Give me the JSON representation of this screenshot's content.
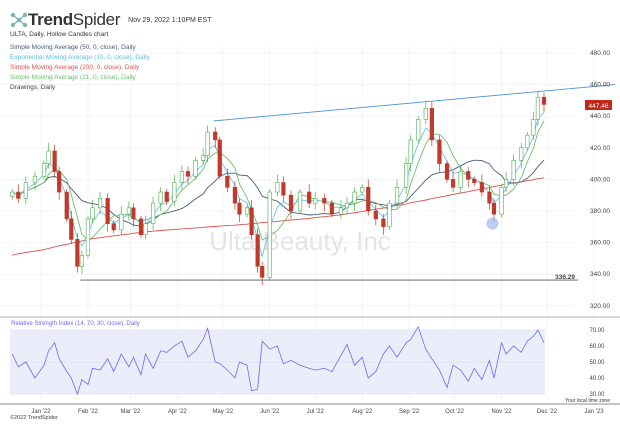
{
  "header": {
    "logo_bold": "Trend",
    "logo_light": "Spider",
    "timestamp": "Nov 29, 2022 1:10PM EST"
  },
  "legend": [
    {
      "label": "ULTA, Daily, Hollow Candles chart",
      "color": "#333333"
    },
    {
      "label": "Simple Moving Average (50, 0, close), Daily",
      "color": "#4a5a7a"
    },
    {
      "label": "Exponential Moving Average (10, 0, close), Daily",
      "color": "#5bc0de"
    },
    {
      "label": "Simple Moving Average (200, 0, close), Daily",
      "color": "#d9534f"
    },
    {
      "label": "Simple Moving Average (21, 0, close), Daily",
      "color": "#6cbf6c"
    },
    {
      "label": "Drawings, Daily",
      "color": "#444444"
    }
  ],
  "watermark": "Ulta Beauty, Inc",
  "last_price_label": "447.46",
  "support_label": "336.29",
  "rsi_title": "Relative Strength Index (14, 70, 30, close), Daily",
  "timezone_note": "Your local time zone",
  "copyright": "©2022 TrendSpider",
  "colors": {
    "up": "#4caf50",
    "down": "#c0392b",
    "trendline": "#4a90d9",
    "rsi": "#6a6af0",
    "price_tag": "#c0281c"
  },
  "chart_data": [
    {
      "type": "candlestick",
      "title": "ULTA, Daily, Hollow Candles chart",
      "ylim": [
        320,
        490
      ],
      "y_ticks": [
        "480.00",
        "460.00",
        "440.00",
        "420.00",
        "400.00",
        "380.00",
        "360.00",
        "340.00",
        "320.00"
      ],
      "x_ticks": [
        {
          "label": "Jan '22",
          "date": "2022-01-01"
        },
        {
          "label": "Feb '22",
          "date": "2022-02-01"
        },
        {
          "label": "Mar '22",
          "date": "2022-03-01"
        },
        {
          "label": "Apr '22",
          "date": "2022-04-01"
        },
        {
          "label": "May '22",
          "date": "2022-05-01"
        },
        {
          "label": "Jun '22",
          "date": "2022-06-01"
        },
        {
          "label": "Jul '22",
          "date": "2022-07-01"
        },
        {
          "label": "Aug '22",
          "date": "2022-08-01"
        },
        {
          "label": "Sep '22",
          "date": "2022-09-01"
        },
        {
          "label": "Oct '22",
          "date": "2022-10-01"
        },
        {
          "label": "Nov '22",
          "date": "2022-11-01"
        },
        {
          "label": "Dec '22",
          "date": "2022-12-01"
        },
        {
          "label": "Jan '23",
          "date": "2023-01-01"
        }
      ],
      "close": [
        [
          "2021-12-13",
          392
        ],
        [
          "2021-12-17",
          388
        ],
        [
          "2021-12-22",
          398
        ],
        [
          "2021-12-28",
          402
        ],
        [
          "2022-01-03",
          410
        ],
        [
          "2022-01-06",
          418
        ],
        [
          "2022-01-10",
          405
        ],
        [
          "2022-01-13",
          392
        ],
        [
          "2022-01-18",
          375
        ],
        [
          "2022-01-21",
          362
        ],
        [
          "2022-01-25",
          345
        ],
        [
          "2022-01-28",
          352
        ],
        [
          "2022-02-01",
          375
        ],
        [
          "2022-02-04",
          382
        ],
        [
          "2022-02-09",
          388
        ],
        [
          "2022-02-14",
          372
        ],
        [
          "2022-02-18",
          368
        ],
        [
          "2022-02-23",
          378
        ],
        [
          "2022-02-28",
          382
        ],
        [
          "2022-03-03",
          375
        ],
        [
          "2022-03-08",
          365
        ],
        [
          "2022-03-11",
          372
        ],
        [
          "2022-03-16",
          385
        ],
        [
          "2022-03-21",
          392
        ],
        [
          "2022-03-25",
          386
        ],
        [
          "2022-03-30",
          398
        ],
        [
          "2022-04-04",
          405
        ],
        [
          "2022-04-08",
          402
        ],
        [
          "2022-04-13",
          412
        ],
        [
          "2022-04-18",
          415
        ],
        [
          "2022-04-21",
          430
        ],
        [
          "2022-04-26",
          425
        ],
        [
          "2022-04-29",
          402
        ],
        [
          "2022-05-04",
          395
        ],
        [
          "2022-05-09",
          385
        ],
        [
          "2022-05-12",
          378
        ],
        [
          "2022-05-17",
          382
        ],
        [
          "2022-05-20",
          365
        ],
        [
          "2022-05-24",
          345
        ],
        [
          "2022-05-27",
          338
        ],
        [
          "2022-06-01",
          392
        ],
        [
          "2022-06-06",
          398
        ],
        [
          "2022-06-10",
          390
        ],
        [
          "2022-06-15",
          380
        ],
        [
          "2022-06-21",
          392
        ],
        [
          "2022-06-27",
          385
        ],
        [
          "2022-07-01",
          388
        ],
        [
          "2022-07-07",
          385
        ],
        [
          "2022-07-12",
          378
        ],
        [
          "2022-07-18",
          382
        ],
        [
          "2022-07-22",
          385
        ],
        [
          "2022-07-27",
          392
        ],
        [
          "2022-08-01",
          395
        ],
        [
          "2022-08-05",
          380
        ],
        [
          "2022-08-10",
          375
        ],
        [
          "2022-08-15",
          370
        ],
        [
          "2022-08-19",
          385
        ],
        [
          "2022-08-24",
          395
        ],
        [
          "2022-08-30",
          410
        ],
        [
          "2022-09-02",
          425
        ],
        [
          "2022-09-07",
          438
        ],
        [
          "2022-09-12",
          445
        ],
        [
          "2022-09-16",
          425
        ],
        [
          "2022-09-21",
          410
        ],
        [
          "2022-09-26",
          400
        ],
        [
          "2022-09-30",
          395
        ],
        [
          "2022-10-05",
          405
        ],
        [
          "2022-10-10",
          400
        ],
        [
          "2022-10-14",
          398
        ],
        [
          "2022-10-19",
          392
        ],
        [
          "2022-10-24",
          385
        ],
        [
          "2022-10-27",
          378
        ],
        [
          "2022-11-01",
          395
        ],
        [
          "2022-11-04",
          400
        ],
        [
          "2022-11-09",
          412
        ],
        [
          "2022-11-14",
          420
        ],
        [
          "2022-11-18",
          428
        ],
        [
          "2022-11-22",
          438
        ],
        [
          "2022-11-25",
          452
        ],
        [
          "2022-11-29",
          447.46
        ]
      ],
      "last_price": 447.46,
      "drawings": {
        "trendline": [
          [
            "2022-04-25",
            437
          ],
          [
            "2023-01-15",
            460
          ]
        ],
        "horizontal_support": {
          "value": 336.29,
          "from": "2022-01-27",
          "to": "2022-11-30"
        },
        "marker": [
          "2022-10-26",
          372
        ]
      }
    },
    {
      "type": "line",
      "title": "Relative Strength Index (14, 70, 30, close), Daily",
      "ylim": [
        25,
        75
      ],
      "band": [
        30,
        70
      ],
      "y_ticks": [
        "70.00",
        "60.00",
        "50.00",
        "40.00",
        "30.00"
      ],
      "values": [
        [
          "2021-12-13",
          55
        ],
        [
          "2021-12-17",
          47
        ],
        [
          "2021-12-22",
          50
        ],
        [
          "2021-12-28",
          40
        ],
        [
          "2022-01-03",
          48
        ],
        [
          "2022-01-06",
          57
        ],
        [
          "2022-01-10",
          62
        ],
        [
          "2022-01-13",
          52
        ],
        [
          "2022-01-18",
          44
        ],
        [
          "2022-01-21",
          40
        ],
        [
          "2022-01-25",
          30
        ],
        [
          "2022-01-28",
          39
        ],
        [
          "2022-02-01",
          36
        ],
        [
          "2022-02-04",
          46
        ],
        [
          "2022-02-09",
          45
        ],
        [
          "2022-02-14",
          52
        ],
        [
          "2022-02-18",
          44
        ],
        [
          "2022-02-23",
          55
        ],
        [
          "2022-02-28",
          47
        ],
        [
          "2022-03-03",
          53
        ],
        [
          "2022-03-08",
          42
        ],
        [
          "2022-03-11",
          55
        ],
        [
          "2022-03-16",
          46
        ],
        [
          "2022-03-21",
          57
        ],
        [
          "2022-03-25",
          56
        ],
        [
          "2022-03-30",
          60
        ],
        [
          "2022-04-04",
          63
        ],
        [
          "2022-04-08",
          53
        ],
        [
          "2022-04-13",
          57
        ],
        [
          "2022-04-18",
          64
        ],
        [
          "2022-04-21",
          71
        ],
        [
          "2022-04-26",
          50
        ],
        [
          "2022-04-29",
          49
        ],
        [
          "2022-05-04",
          45
        ],
        [
          "2022-05-09",
          40
        ],
        [
          "2022-05-12",
          50
        ],
        [
          "2022-05-17",
          48
        ],
        [
          "2022-05-20",
          32
        ],
        [
          "2022-05-24",
          33
        ],
        [
          "2022-05-27",
          63
        ],
        [
          "2022-06-01",
          58
        ],
        [
          "2022-06-06",
          60
        ],
        [
          "2022-06-10",
          49
        ],
        [
          "2022-06-15",
          51
        ],
        [
          "2022-06-21",
          48
        ],
        [
          "2022-06-27",
          46
        ],
        [
          "2022-07-01",
          45
        ],
        [
          "2022-07-07",
          46
        ],
        [
          "2022-07-12",
          44
        ],
        [
          "2022-07-18",
          54
        ],
        [
          "2022-07-22",
          61
        ],
        [
          "2022-07-27",
          48
        ],
        [
          "2022-08-01",
          53
        ],
        [
          "2022-08-05",
          40
        ],
        [
          "2022-08-10",
          44
        ],
        [
          "2022-08-15",
          55
        ],
        [
          "2022-08-19",
          60
        ],
        [
          "2022-08-24",
          53
        ],
        [
          "2022-08-30",
          62
        ],
        [
          "2022-09-02",
          64
        ],
        [
          "2022-09-07",
          72
        ],
        [
          "2022-09-12",
          58
        ],
        [
          "2022-09-16",
          52
        ],
        [
          "2022-09-21",
          45
        ],
        [
          "2022-09-26",
          34
        ],
        [
          "2022-09-30",
          48
        ],
        [
          "2022-10-05",
          45
        ],
        [
          "2022-10-10",
          38
        ],
        [
          "2022-10-14",
          46
        ],
        [
          "2022-10-19",
          39
        ],
        [
          "2022-10-24",
          51
        ],
        [
          "2022-10-27",
          40
        ],
        [
          "2022-11-01",
          62
        ],
        [
          "2022-11-04",
          55
        ],
        [
          "2022-11-09",
          60
        ],
        [
          "2022-11-14",
          56
        ],
        [
          "2022-11-18",
          63
        ],
        [
          "2022-11-22",
          66
        ],
        [
          "2022-11-25",
          70
        ],
        [
          "2022-11-29",
          62
        ]
      ]
    }
  ]
}
